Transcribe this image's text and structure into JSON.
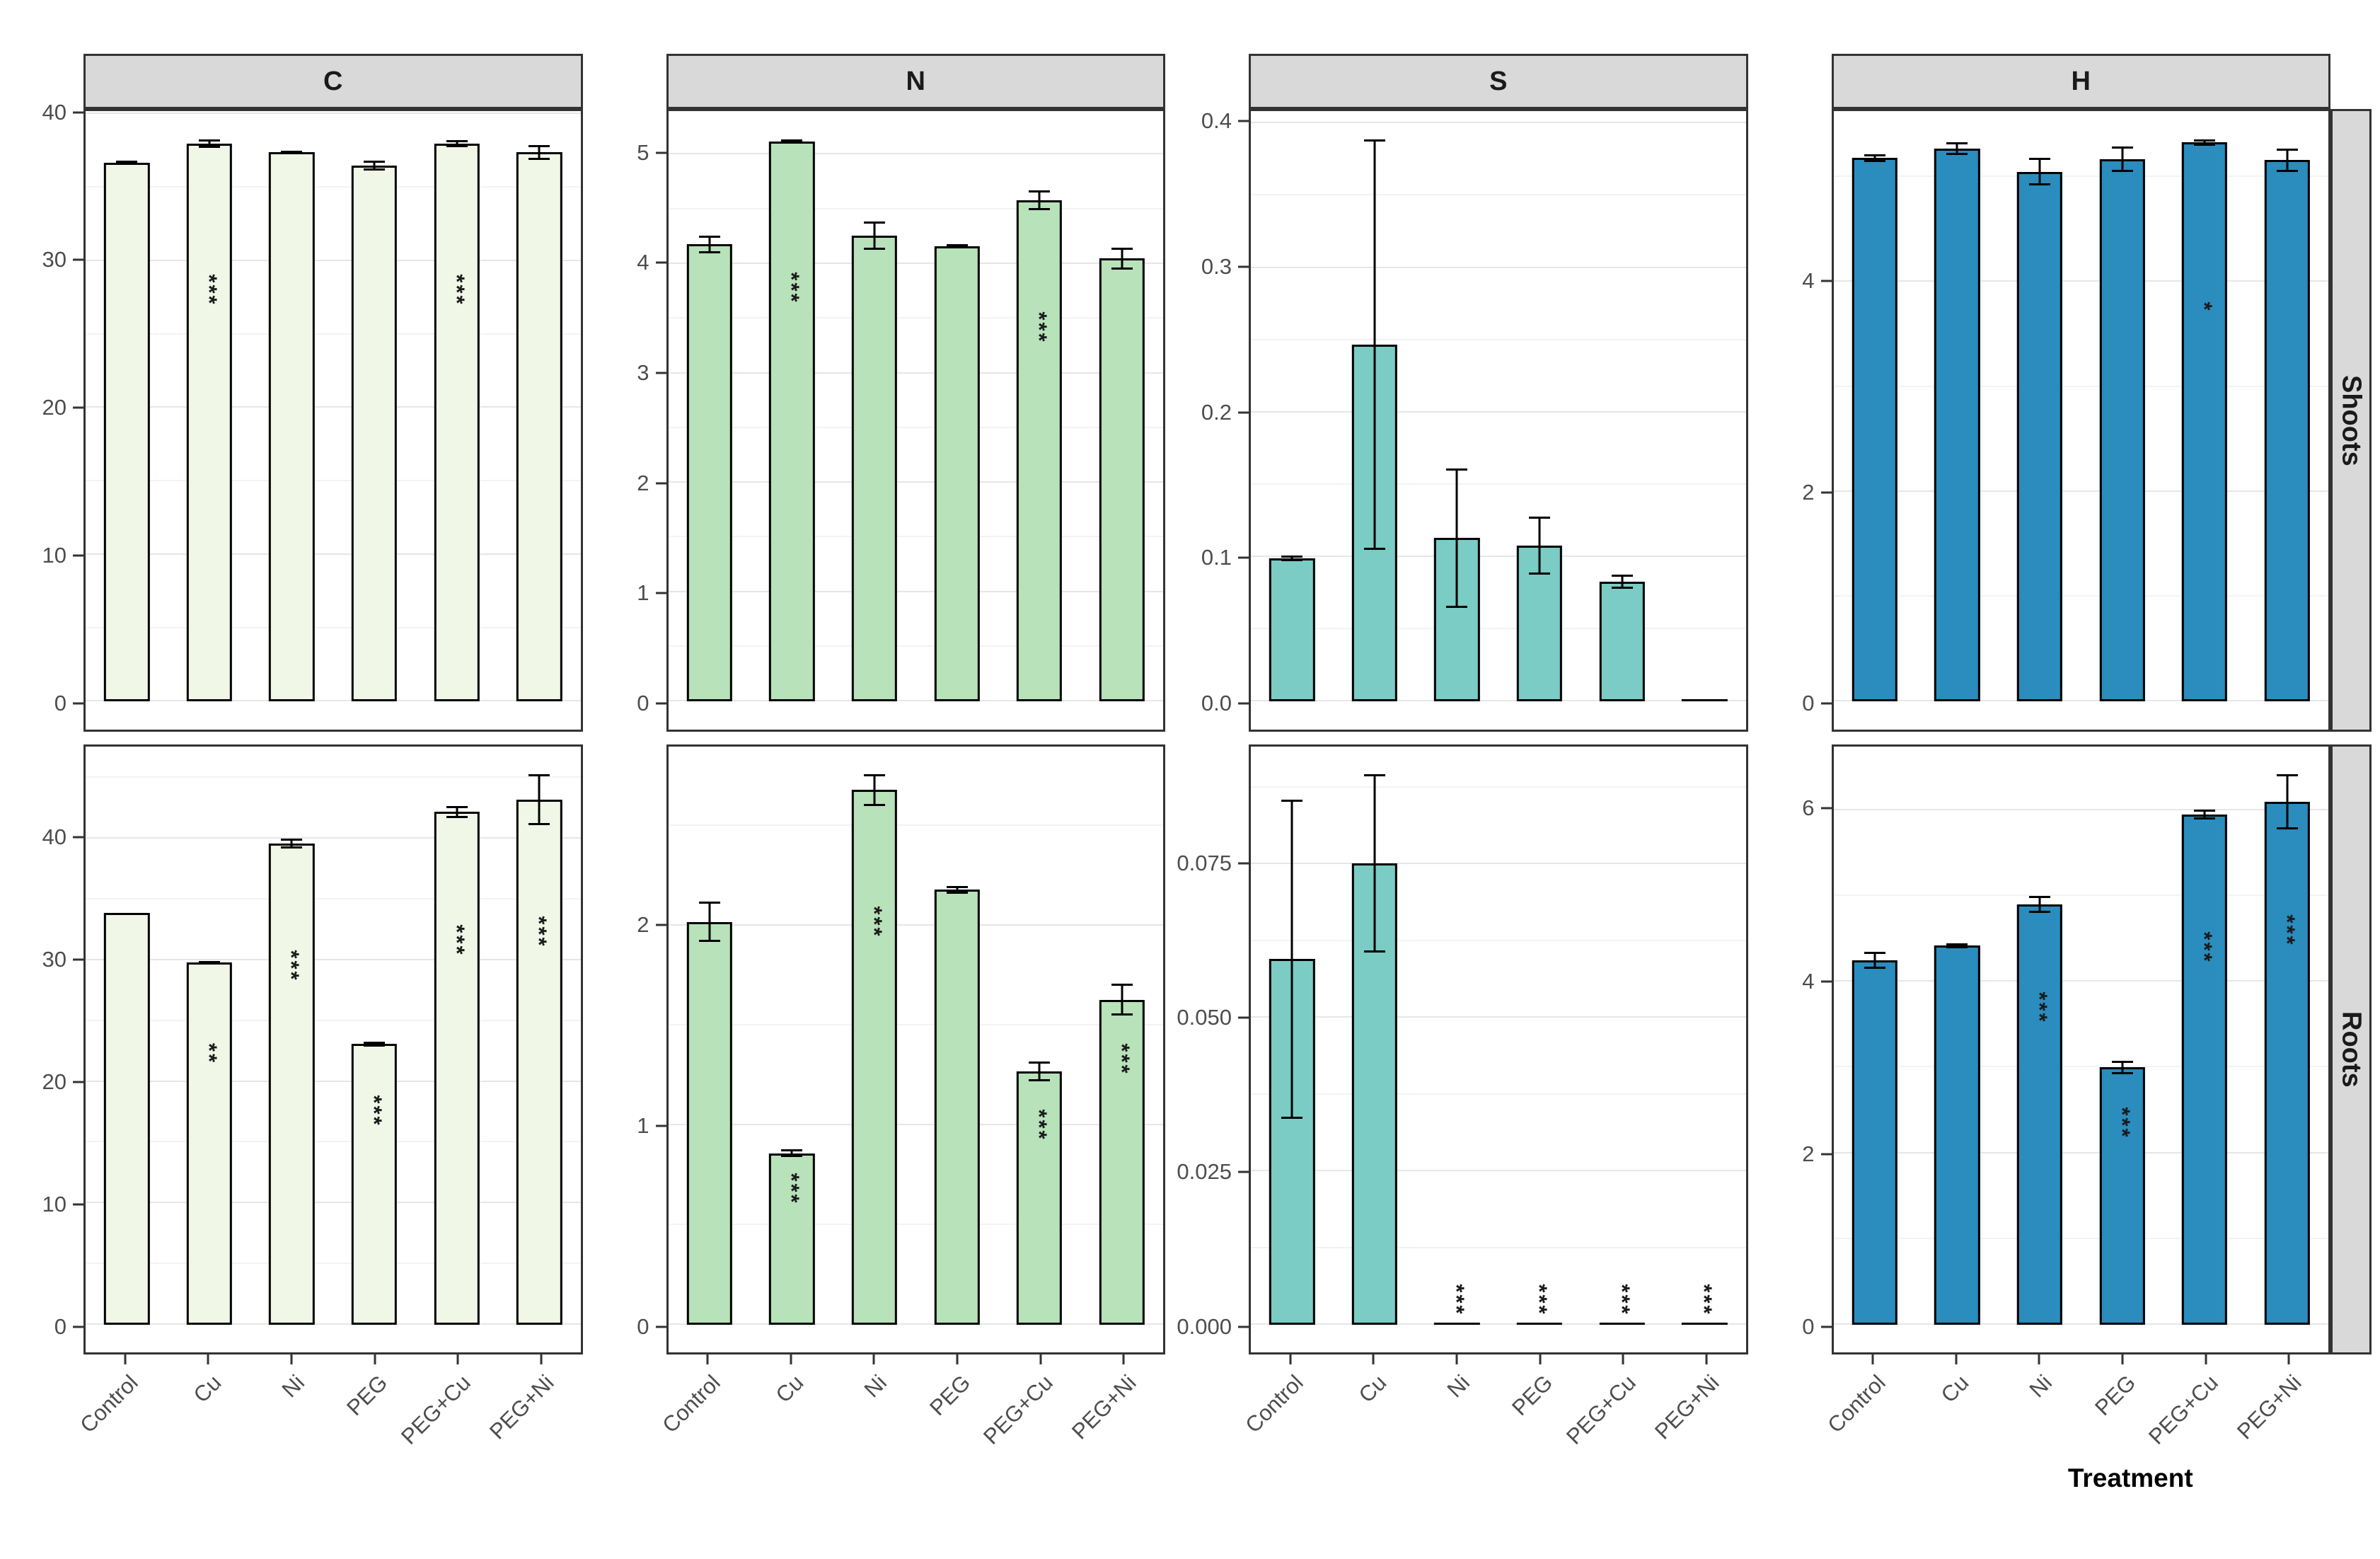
{
  "facets": {
    "columns": [
      "C",
      "N",
      "S",
      "H"
    ],
    "rows": [
      "Shoots",
      "Roots"
    ]
  },
  "x_axis": {
    "title": "Treatment",
    "categories": [
      "Control",
      "Cu",
      "Ni",
      "PEG",
      "PEG+Cu",
      "PEG+Ni"
    ]
  },
  "colors": {
    "fill_C": "#f0f7e6",
    "fill_N": "#b8e2ba",
    "fill_S": "#7bccc4",
    "fill_H": "#2b8cbe",
    "strip_bg": "#d9d9d9",
    "panel_border": "#333333",
    "bar_stroke": "#000000",
    "grid_major": "#e6e6e6",
    "grid_minor": "#f3f3f3",
    "axis_text": "#4d4d4d"
  },
  "categories": [
    "Control",
    "Cu",
    "Ni",
    "PEG",
    "PEG+Cu",
    "PEG+Ni"
  ],
  "chart_data": [
    {
      "type": "bar",
      "element": "C",
      "tissue": "Shoots",
      "fill": "#f0f7e6",
      "ylim": [
        0,
        41
      ],
      "minor_step": 5,
      "yticks": [
        0,
        10,
        20,
        30,
        40
      ],
      "ytick_labels": [
        "0",
        "10",
        "20",
        "30",
        "40"
      ],
      "bars": [
        {
          "category": "Control",
          "value": 36.7,
          "error": 0.15,
          "sig": "",
          "sig_y": null
        },
        {
          "category": "Cu",
          "value": 38.0,
          "error": 0.3,
          "sig": "***",
          "sig_y": 28
        },
        {
          "category": "Ni",
          "value": 37.4,
          "error": 0.12,
          "sig": "",
          "sig_y": null
        },
        {
          "category": "PEG",
          "value": 36.5,
          "error": 0.35,
          "sig": "",
          "sig_y": null
        },
        {
          "category": "PEG+Cu",
          "value": 38.0,
          "error": 0.25,
          "sig": "***",
          "sig_y": 28
        },
        {
          "category": "PEG+Ni",
          "value": 37.4,
          "error": 0.5,
          "sig": "",
          "sig_y": null
        }
      ]
    },
    {
      "type": "bar",
      "element": "N",
      "tissue": "Shoots",
      "fill": "#b8e2ba",
      "ylim": [
        0,
        5.4
      ],
      "minor_step": 0.5,
      "yticks": [
        0,
        1,
        2,
        3,
        4,
        5
      ],
      "ytick_labels": [
        "0",
        "1",
        "2",
        "3",
        "4",
        "5"
      ],
      "bars": [
        {
          "category": "Control",
          "value": 4.18,
          "error": 0.08,
          "sig": "",
          "sig_y": null
        },
        {
          "category": "Cu",
          "value": 5.12,
          "error": 0.02,
          "sig": "***",
          "sig_y": 3.78
        },
        {
          "category": "Ni",
          "value": 4.26,
          "error": 0.13,
          "sig": "",
          "sig_y": null
        },
        {
          "category": "PEG",
          "value": 4.16,
          "error": 0.02,
          "sig": "",
          "sig_y": null
        },
        {
          "category": "PEG+Cu",
          "value": 4.58,
          "error": 0.09,
          "sig": "***",
          "sig_y": 3.42
        },
        {
          "category": "PEG+Ni",
          "value": 4.05,
          "error": 0.1,
          "sig": "",
          "sig_y": null
        }
      ]
    },
    {
      "type": "bar",
      "element": "S",
      "tissue": "Shoots",
      "fill": "#7bccc4",
      "ylim": [
        0,
        0.41
      ],
      "minor_step": 0.05,
      "yticks": [
        0,
        0.1,
        0.2,
        0.3,
        0.4
      ],
      "ytick_labels": [
        "0.0",
        "0.1",
        "0.2",
        "0.3",
        "0.4"
      ],
      "bars": [
        {
          "category": "Control",
          "value": 0.099,
          "error": 0.002,
          "sig": "",
          "sig_y": null
        },
        {
          "category": "Cu",
          "value": 0.247,
          "error": 0.142,
          "sig": "",
          "sig_y": null
        },
        {
          "category": "Ni",
          "value": 0.113,
          "error": 0.048,
          "sig": "",
          "sig_y": null
        },
        {
          "category": "PEG",
          "value": 0.108,
          "error": 0.02,
          "sig": "",
          "sig_y": null
        },
        {
          "category": "PEG+Cu",
          "value": 0.083,
          "error": 0.005,
          "sig": "",
          "sig_y": null
        },
        {
          "category": "PEG+Ni",
          "value": 0,
          "error": 0,
          "sig": "",
          "sig_y": null
        }
      ]
    },
    {
      "type": "bar",
      "element": "H",
      "tissue": "Shoots",
      "fill": "#2b8cbe",
      "ylim": [
        0,
        5.65
      ],
      "minor_step": 1,
      "yticks": [
        0,
        2,
        4
      ],
      "ytick_labels": [
        "0",
        "2",
        "4"
      ],
      "bars": [
        {
          "category": "Control",
          "value": 5.18,
          "error": 0.04,
          "sig": "",
          "sig_y": null
        },
        {
          "category": "Cu",
          "value": 5.27,
          "error": 0.06,
          "sig": "",
          "sig_y": null
        },
        {
          "category": "Ni",
          "value": 5.05,
          "error": 0.13,
          "sig": "",
          "sig_y": null
        },
        {
          "category": "PEG",
          "value": 5.17,
          "error": 0.12,
          "sig": "",
          "sig_y": null
        },
        {
          "category": "PEG+Cu",
          "value": 5.33,
          "error": 0.03,
          "sig": "*",
          "sig_y": 3.76
        },
        {
          "category": "PEG+Ni",
          "value": 5.16,
          "error": 0.11,
          "sig": "",
          "sig_y": null
        }
      ]
    },
    {
      "type": "bar",
      "element": "C",
      "tissue": "Roots",
      "fill": "#f0f7e6",
      "ylim": [
        0,
        47.5
      ],
      "minor_step": 5,
      "yticks": [
        0,
        10,
        20,
        30,
        40
      ],
      "ytick_labels": [
        "0",
        "10",
        "20",
        "30",
        "40"
      ],
      "bars": [
        {
          "category": "Control",
          "value": 33.9,
          "error": 0,
          "sig": "",
          "sig_y": null
        },
        {
          "category": "Cu",
          "value": 29.8,
          "error": 0.1,
          "sig": "**",
          "sig_y": 22.3
        },
        {
          "category": "Ni",
          "value": 39.6,
          "error": 0.4,
          "sig": "***",
          "sig_y": 29.5
        },
        {
          "category": "PEG",
          "value": 23.1,
          "error": 0.2,
          "sig": "***",
          "sig_y": 17.6
        },
        {
          "category": "PEG+Cu",
          "value": 42.2,
          "error": 0.5,
          "sig": "***",
          "sig_y": 31.6
        },
        {
          "category": "PEG+Ni",
          "value": 43.2,
          "error": 2.1,
          "sig": "***",
          "sig_y": 32.3
        }
      ]
    },
    {
      "type": "bar",
      "element": "N",
      "tissue": "Roots",
      "fill": "#b8e2ba",
      "ylim": [
        0,
        2.9
      ],
      "minor_step": 0.5,
      "yticks": [
        0,
        1,
        2
      ],
      "ytick_labels": [
        "0",
        "1",
        "2"
      ],
      "bars": [
        {
          "category": "Control",
          "value": 2.02,
          "error": 0.1,
          "sig": "",
          "sig_y": null
        },
        {
          "category": "Cu",
          "value": 0.86,
          "error": 0.02,
          "sig": "***",
          "sig_y": 0.68
        },
        {
          "category": "Ni",
          "value": 2.68,
          "error": 0.08,
          "sig": "***",
          "sig_y": 2.02
        },
        {
          "category": "PEG",
          "value": 2.18,
          "error": 0.02,
          "sig": "",
          "sig_y": null
        },
        {
          "category": "PEG+Cu",
          "value": 1.27,
          "error": 0.05,
          "sig": "***",
          "sig_y": 1.0
        },
        {
          "category": "PEG+Ni",
          "value": 1.63,
          "error": 0.08,
          "sig": "***",
          "sig_y": 1.33
        }
      ]
    },
    {
      "type": "bar",
      "element": "S",
      "tissue": "Roots",
      "fill": "#7bccc4",
      "ylim": [
        0,
        0.094
      ],
      "minor_step": 0.0125,
      "yticks": [
        0,
        0.025,
        0.05,
        0.075
      ],
      "ytick_labels": [
        "0.000",
        "0.025",
        "0.050",
        "0.075"
      ],
      "bars": [
        {
          "category": "Control",
          "value": 0.0596,
          "error": 0.026,
          "sig": "",
          "sig_y": null
        },
        {
          "category": "Cu",
          "value": 0.0752,
          "error": 0.0145,
          "sig": "",
          "sig_y": null
        },
        {
          "category": "Ni",
          "value": 0,
          "error": 0,
          "sig": "***",
          "sig_y": 0.004
        },
        {
          "category": "PEG",
          "value": 0,
          "error": 0,
          "sig": "***",
          "sig_y": 0.004
        },
        {
          "category": "PEG+Cu",
          "value": 0,
          "error": 0,
          "sig": "***",
          "sig_y": 0.004
        },
        {
          "category": "PEG+Ni",
          "value": 0,
          "error": 0,
          "sig": "***",
          "sig_y": 0.004
        }
      ]
    },
    {
      "type": "bar",
      "element": "H",
      "tissue": "Roots",
      "fill": "#2b8cbe",
      "ylim": [
        0,
        6.75
      ],
      "minor_step": 1,
      "yticks": [
        0,
        2,
        4,
        6
      ],
      "ytick_labels": [
        "0",
        "2",
        "4",
        "6"
      ],
      "bars": [
        {
          "category": "Control",
          "value": 4.25,
          "error": 0.1,
          "sig": "",
          "sig_y": null
        },
        {
          "category": "Cu",
          "value": 4.42,
          "error": 0.03,
          "sig": "",
          "sig_y": null
        },
        {
          "category": "Ni",
          "value": 4.9,
          "error": 0.1,
          "sig": "***",
          "sig_y": 3.7
        },
        {
          "category": "PEG",
          "value": 3.0,
          "error": 0.08,
          "sig": "***",
          "sig_y": 2.35
        },
        {
          "category": "PEG+Cu",
          "value": 5.95,
          "error": 0.06,
          "sig": "***",
          "sig_y": 4.4
        },
        {
          "category": "PEG+Ni",
          "value": 6.1,
          "error": 0.32,
          "sig": "***",
          "sig_y": 4.6
        }
      ]
    }
  ]
}
